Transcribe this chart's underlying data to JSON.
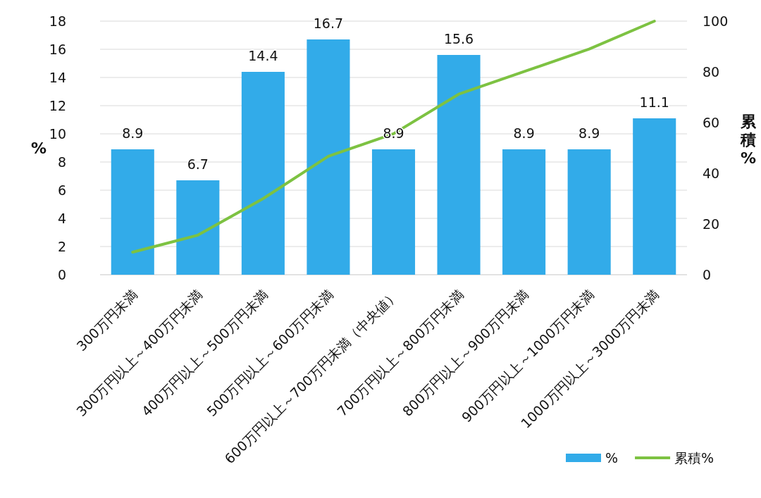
{
  "chart_data": {
    "type": "bar",
    "categories": [
      "300万円未満",
      "300万円以上～400万円未満",
      "400万円以上～500万円未満",
      "500万円以上～600万円未満",
      "600万円以上～700万円未満（中央値）",
      "700万円以上～800万円未満",
      "800万円以上～900万円未満",
      "900万円以上～1000万円未満",
      "1000万円以上～3000万円未満"
    ],
    "series": [
      {
        "name": "%",
        "color": "#32abe9",
        "values": [
          8.9,
          6.7,
          14.4,
          16.7,
          8.9,
          15.6,
          8.9,
          8.9,
          11.1
        ],
        "value_labels": [
          "8.9",
          "6.7",
          "14.4",
          "16.7",
          "8.9",
          "15.6",
          "8.9",
          "8.9",
          "11.1"
        ]
      },
      {
        "name": "累積%",
        "type": "line",
        "axis": "y2",
        "color": "#7dc242",
        "values": [
          8.9,
          15.6,
          30.0,
          46.7,
          55.6,
          71.2,
          80.1,
          89.0,
          100
        ]
      }
    ],
    "ylabel": "%",
    "y2label": "累積%",
    "ylim": [
      0,
      18
    ],
    "yticks": [
      0,
      2,
      4,
      6,
      8,
      10,
      12,
      14,
      16,
      18
    ],
    "y2lim": [
      0,
      100
    ],
    "y2ticks": [
      0,
      20,
      40,
      60,
      80,
      100
    ],
    "grid": "y",
    "legend": "bottom right"
  }
}
